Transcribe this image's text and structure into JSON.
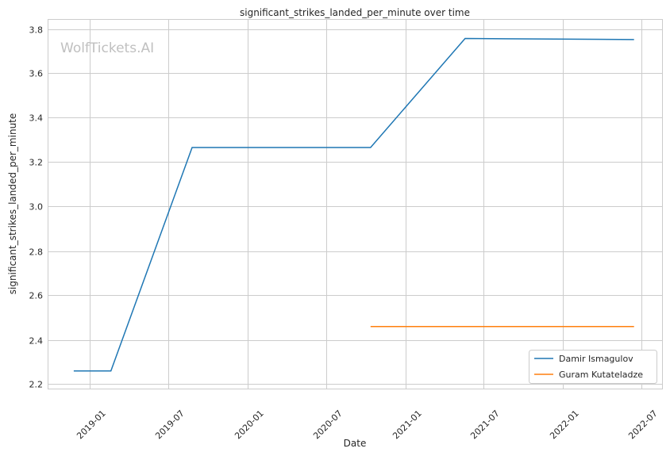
{
  "chart_data": {
    "type": "line",
    "title": "significant_strikes_landed_per_minute over time",
    "xlabel": "Date",
    "ylabel": "significant_strikes_landed_per_minute",
    "watermark": "WolfTickets.AI",
    "xlim": [
      "2018-10-20",
      "2022-08-01"
    ],
    "ylim": [
      2.19,
      3.83
    ],
    "x_ticks": [
      "2019-01",
      "2019-07",
      "2020-01",
      "2020-07",
      "2021-01",
      "2021-07",
      "2022-01",
      "2022-07"
    ],
    "y_ticks": [
      "2.2",
      "2.4",
      "2.6",
      "2.8",
      "3.0",
      "3.2",
      "3.4",
      "3.6",
      "3.8"
    ],
    "grid": true,
    "legend_position": "bottom-right",
    "series": [
      {
        "name": "Damir Ismagulov",
        "color": "#1f77b4",
        "x": [
          "2018-11-25",
          "2019-02-19",
          "2019-08-26",
          "2020-10-12",
          "2021-05-19",
          "2022-06-14"
        ],
        "y": [
          2.26,
          2.26,
          3.266,
          3.266,
          3.757,
          3.752
        ]
      },
      {
        "name": "Guram Kutateladze",
        "color": "#ff7f0e",
        "x": [
          "2020-10-12",
          "2022-06-14"
        ],
        "y": [
          2.46,
          2.46
        ]
      }
    ]
  }
}
